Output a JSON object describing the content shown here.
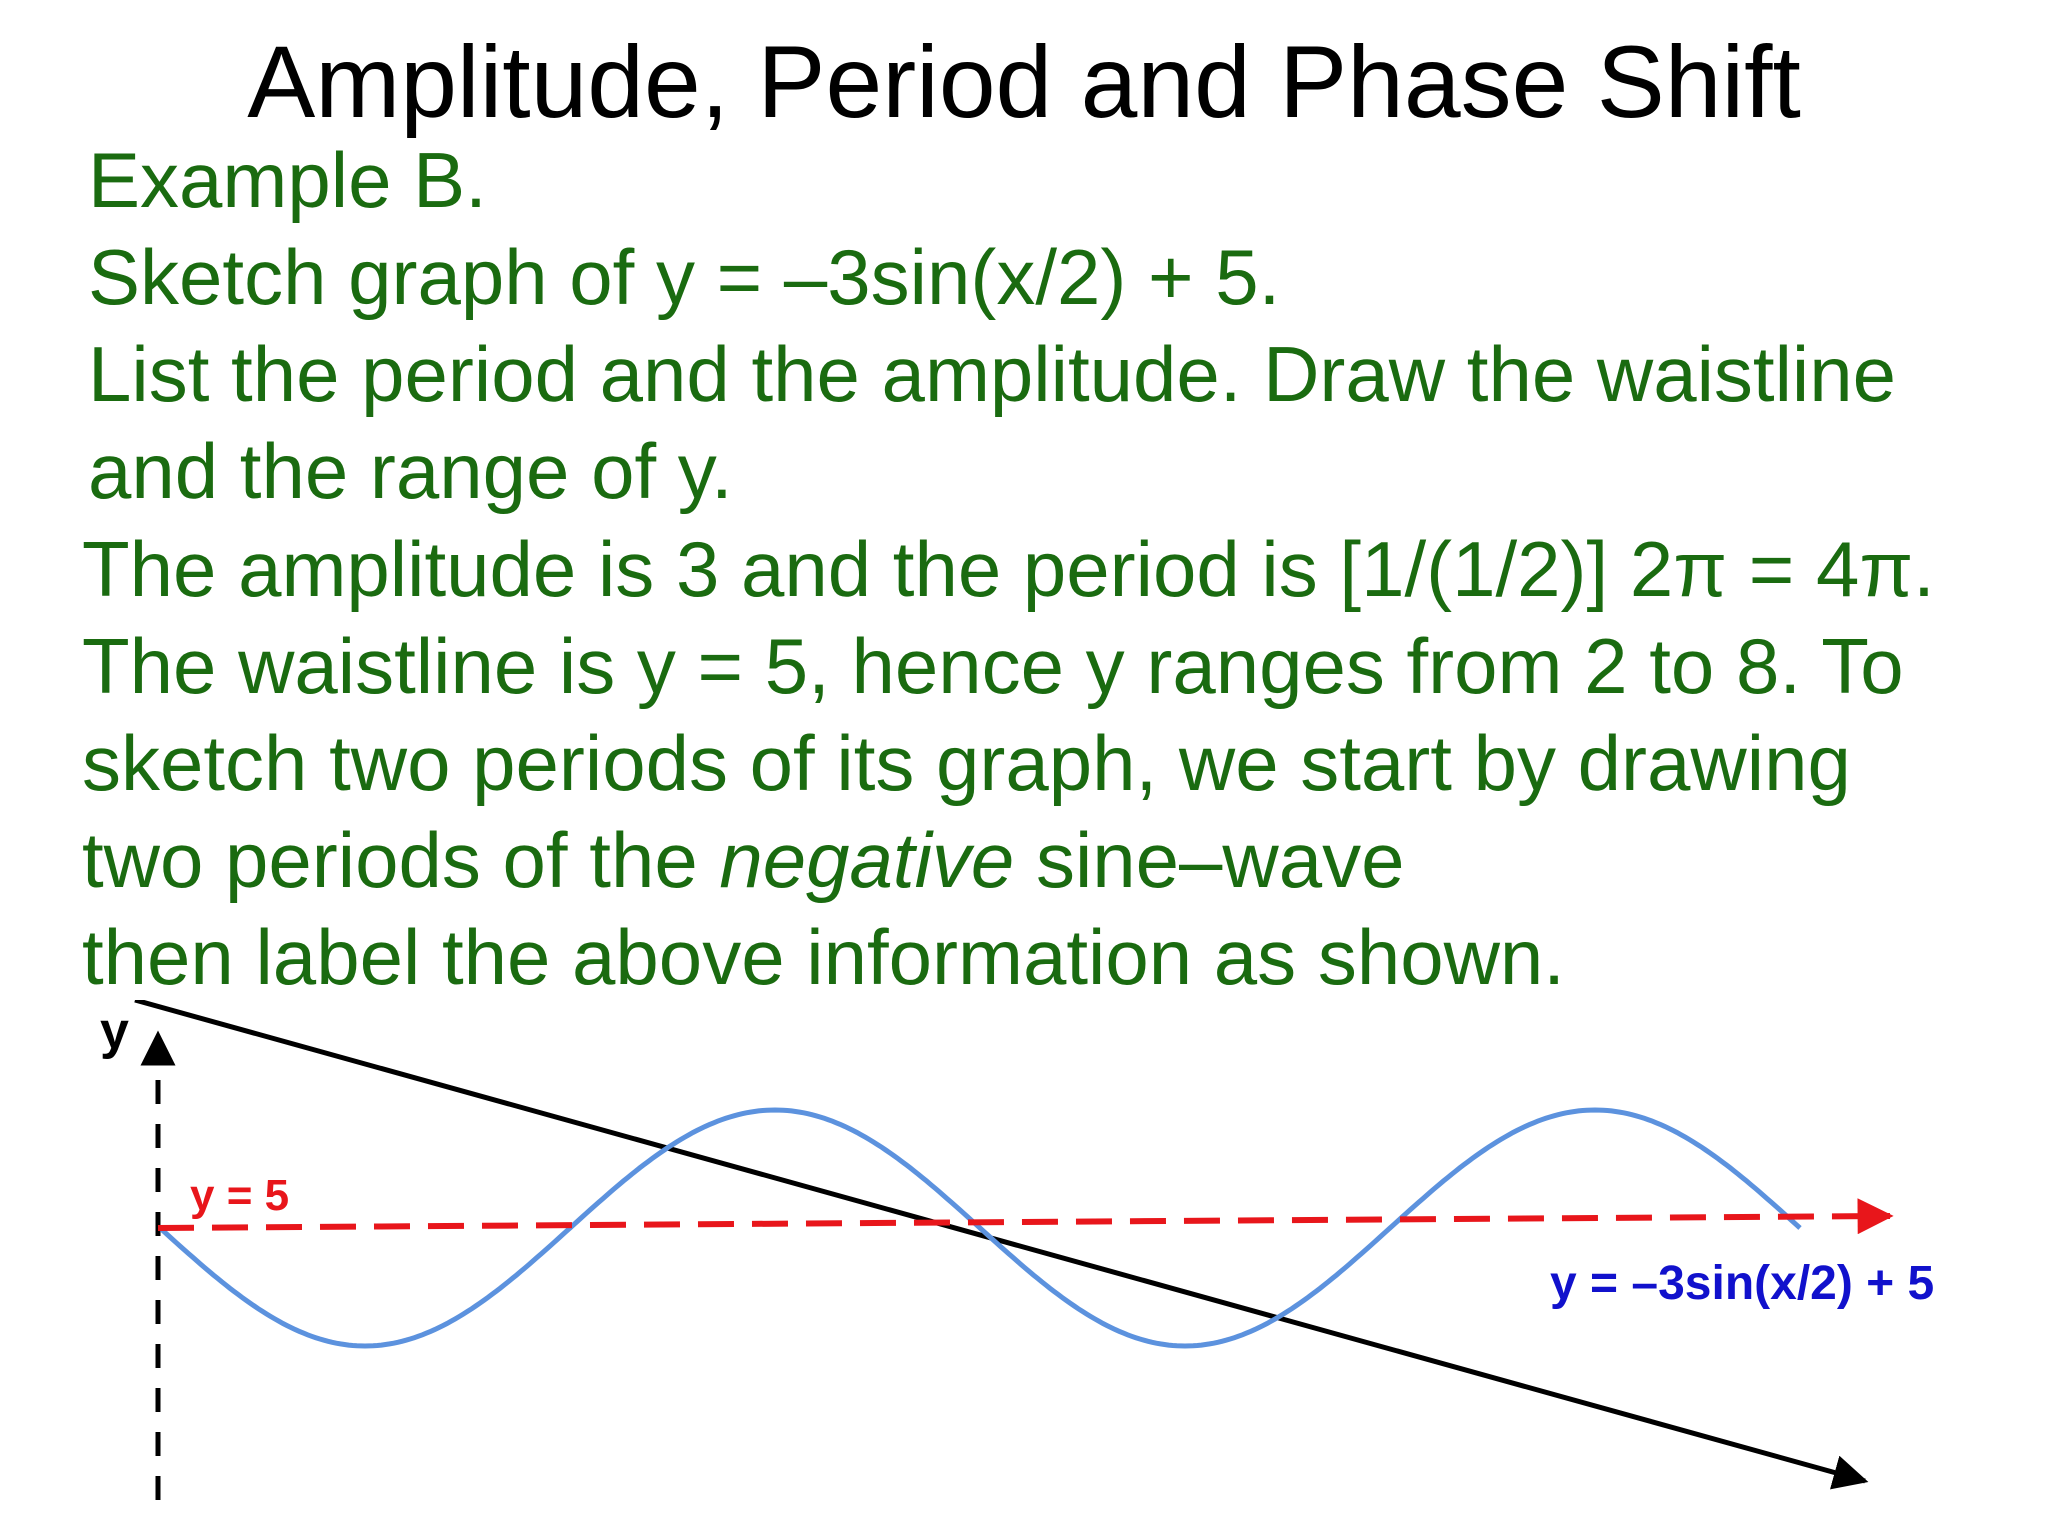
{
  "slide": {
    "title": "Amplitude, Period and Phase Shift"
  },
  "problem": {
    "line1": "Example B.",
    "line2": "Sketch graph of y = –3sin(x/2) + 5.",
    "line3": "List the period and the amplitude. Draw the waistline",
    "line4": "and the range of y."
  },
  "solution": {
    "line1": "The amplitude is 3 and the period is [1/(1/2)] 2π = 4π.",
    "line2": "The waistline is y = 5, hence y ranges from 2 to 8. To",
    "line3": "sketch two periods of its graph, we start by drawing",
    "line4_before": "two periods of the ",
    "line4_emph": "negative",
    "line4_after": " sine–wave",
    "line5": "then label the above information as shown."
  },
  "graph": {
    "y_axis_label": "y",
    "waistline_label": "y = 5",
    "curve_label": "y = –3sin(x/2) + 5",
    "colors": {
      "curve": "#5c92de",
      "waistline": "#e8161b",
      "curve_label": "#1111cc",
      "axes": "#000000"
    },
    "function": {
      "amplitude": 3,
      "period": "4π",
      "waistline": 5,
      "periods_shown": 2
    }
  }
}
